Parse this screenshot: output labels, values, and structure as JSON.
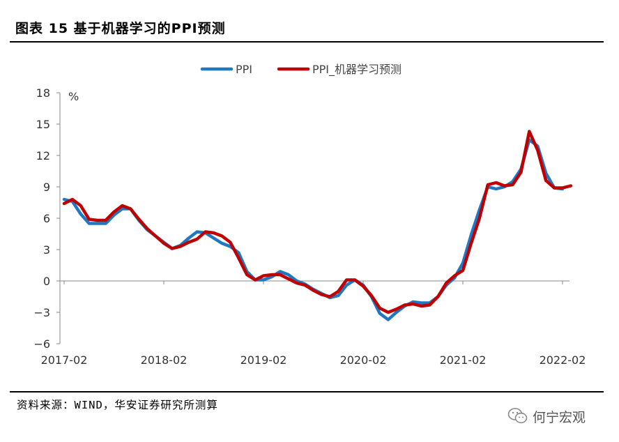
{
  "header": {
    "title": "图表 15 基于机器学习的PPI预测"
  },
  "footer": {
    "source": "资料来源：WIND，华安证券研究所测算",
    "watermark": "何宁宏观",
    "watermark_icon": "wechat-icon"
  },
  "chart_data": {
    "type": "line",
    "title": "",
    "ylabel": "%",
    "xlabel": "",
    "ylim": [
      -6,
      18
    ],
    "yticks": [
      -6,
      -3,
      0,
      3,
      6,
      9,
      12,
      15,
      18
    ],
    "ytick_labels": [
      "−6",
      "−3",
      "0",
      "3",
      "6",
      "9",
      "12",
      "15",
      "18"
    ],
    "xlim": [
      0,
      60
    ],
    "xticks": [
      0,
      12,
      24,
      36,
      48,
      60
    ],
    "xtick_labels": [
      "2017-02",
      "2018-02",
      "2019-02",
      "2020-02",
      "2021-02",
      "2022-02"
    ],
    "legend_position": "top-center",
    "series": [
      {
        "name": "PPI",
        "color": "#1F78C1",
        "months": [
          0,
          1,
          2,
          3,
          4,
          5,
          6,
          7,
          8,
          9,
          10,
          11,
          12,
          13,
          14,
          15,
          16,
          17,
          18,
          19,
          20,
          21,
          22,
          23,
          24,
          25,
          26,
          27,
          28,
          29,
          30,
          31,
          32,
          33,
          34,
          35,
          36,
          37,
          38,
          39,
          40,
          41,
          42,
          43,
          44,
          45,
          46,
          47,
          48,
          49,
          50,
          51,
          52,
          53,
          54,
          55,
          56,
          57,
          58,
          59,
          60
        ],
        "values": [
          7.8,
          7.6,
          6.4,
          5.5,
          5.5,
          5.5,
          6.3,
          6.9,
          6.9,
          5.8,
          4.9,
          4.3,
          3.7,
          3.1,
          3.4,
          4.1,
          4.7,
          4.6,
          4.1,
          3.6,
          3.3,
          2.7,
          0.9,
          0.1,
          0.1,
          0.4,
          0.9,
          0.6,
          0.0,
          -0.3,
          -0.8,
          -1.2,
          -1.6,
          -1.4,
          -0.4,
          0.1,
          -0.4,
          -1.5,
          -3.1,
          -3.7,
          -3.0,
          -2.4,
          -2.0,
          -2.1,
          -2.1,
          -1.5,
          -0.4,
          0.3,
          1.7,
          4.4,
          6.8,
          9.0,
          8.8,
          9.0,
          9.5,
          10.7,
          13.5,
          12.9,
          10.3,
          8.9,
          8.8
        ]
      },
      {
        "name": "PPI_机器学习预测",
        "color": "#C00000",
        "months": [
          0,
          1,
          2,
          3,
          4,
          5,
          6,
          7,
          8,
          9,
          10,
          11,
          12,
          13,
          14,
          15,
          16,
          17,
          18,
          19,
          20,
          21,
          22,
          23,
          24,
          25,
          26,
          27,
          28,
          29,
          30,
          31,
          32,
          33,
          34,
          35,
          36,
          37,
          38,
          39,
          40,
          41,
          42,
          43,
          44,
          45,
          46,
          47,
          48,
          49,
          50,
          51,
          52,
          53,
          54,
          55,
          56,
          57,
          58,
          59,
          60,
          61
        ],
        "values": [
          7.4,
          7.8,
          7.2,
          5.9,
          5.8,
          5.8,
          6.6,
          7.2,
          6.9,
          5.9,
          5.0,
          4.3,
          3.6,
          3.1,
          3.3,
          3.7,
          4.0,
          4.7,
          4.6,
          4.3,
          3.7,
          2.2,
          0.6,
          0.1,
          0.5,
          0.6,
          0.6,
          0.2,
          -0.2,
          -0.4,
          -0.9,
          -1.3,
          -1.5,
          -1.0,
          0.1,
          0.1,
          -0.5,
          -1.4,
          -2.6,
          -3.0,
          -2.7,
          -2.3,
          -2.2,
          -2.4,
          -2.3,
          -1.5,
          -0.2,
          0.5,
          1.0,
          3.6,
          6.0,
          9.2,
          9.4,
          9.1,
          9.2,
          10.4,
          14.3,
          12.5,
          9.6,
          8.9,
          8.9,
          9.1
        ]
      }
    ]
  }
}
